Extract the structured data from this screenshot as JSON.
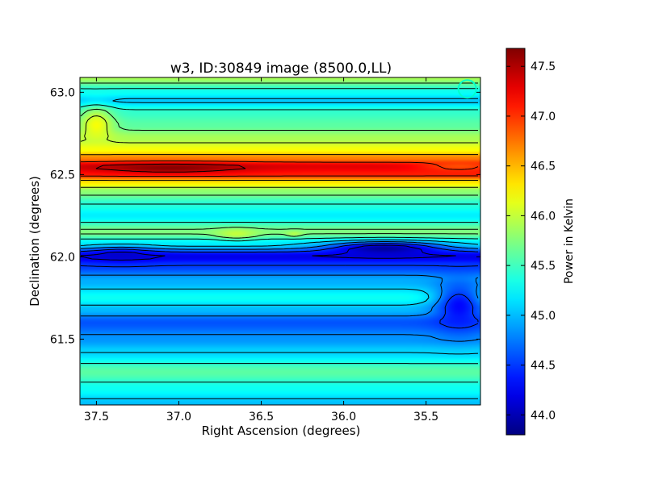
{
  "chart_data": {
    "type": "heatmap",
    "title": "w3, ID:30849 image (8500.0,LL)",
    "xlabel": "Right Ascension (degrees)",
    "ylabel": "Declination (degrees)",
    "xlim": [
      37.6,
      35.17
    ],
    "ylim": [
      61.1,
      63.09
    ],
    "x_ticks": [
      37.5,
      37.0,
      36.5,
      36.0,
      35.5
    ],
    "x_tick_labels": [
      "37.5",
      "37.0",
      "36.5",
      "36.0",
      "35.5"
    ],
    "y_ticks": [
      61.5,
      62.0,
      62.5,
      63.0
    ],
    "y_tick_labels": [
      "61.5",
      "62.0",
      "62.5",
      "63.0"
    ],
    "colorbar": {
      "label": "Power in Kelvin",
      "range": [
        43.8,
        47.68
      ],
      "ticks": [
        44.0,
        44.5,
        45.0,
        45.5,
        46.0,
        46.5,
        47.0,
        47.5
      ],
      "tick_labels": [
        "44.0",
        "44.5",
        "45.0",
        "45.5",
        "46.0",
        "46.5",
        "47.0",
        "47.5"
      ],
      "colormap": "jet"
    },
    "grid": false,
    "contours": true,
    "bands": [
      {
        "dec": 63.09,
        "value": 45.9
      },
      {
        "dec": 63.0,
        "value": 45.3
      },
      {
        "dec": 62.95,
        "value": 45.05
      },
      {
        "dec": 62.88,
        "value": 45.45
      },
      {
        "dec": 62.8,
        "value": 45.6
      },
      {
        "dec": 62.72,
        "value": 45.9
      },
      {
        "dec": 62.65,
        "value": 46.2
      },
      {
        "dec": 62.6,
        "value": 46.7
      },
      {
        "dec": 62.55,
        "value": 47.3
      },
      {
        "dec": 62.5,
        "value": 47.1
      },
      {
        "dec": 62.45,
        "value": 46.3
      },
      {
        "dec": 62.4,
        "value": 45.8
      },
      {
        "dec": 62.32,
        "value": 45.4
      },
      {
        "dec": 62.25,
        "value": 45.2
      },
      {
        "dec": 62.15,
        "value": 45.75
      },
      {
        "dec": 62.08,
        "value": 45.2
      },
      {
        "dec": 62.0,
        "value": 44.2
      },
      {
        "dec": 61.95,
        "value": 44.5
      },
      {
        "dec": 61.85,
        "value": 44.95
      },
      {
        "dec": 61.75,
        "value": 45.3
      },
      {
        "dec": 61.68,
        "value": 45.0
      },
      {
        "dec": 61.6,
        "value": 44.6
      },
      {
        "dec": 61.5,
        "value": 44.85
      },
      {
        "dec": 61.42,
        "value": 45.1
      },
      {
        "dec": 61.3,
        "value": 45.6
      },
      {
        "dec": 61.2,
        "value": 45.3
      },
      {
        "dec": 61.1,
        "value": 45.0
      }
    ],
    "blobs": [
      {
        "ra": 37.05,
        "dec": 62.54,
        "rx": 0.45,
        "ry": 0.03,
        "value": 47.65
      },
      {
        "ra": 35.75,
        "dec": 62.05,
        "rx": 0.35,
        "ry": 0.04,
        "value": 43.9
      },
      {
        "ra": 37.35,
        "dec": 62.01,
        "rx": 0.2,
        "ry": 0.04,
        "value": 44.1
      },
      {
        "ra": 36.65,
        "dec": 62.14,
        "rx": 0.12,
        "ry": 0.03,
        "value": 46.0
      },
      {
        "ra": 36.3,
        "dec": 62.14,
        "rx": 0.05,
        "ry": 0.015,
        "value": 45.95
      },
      {
        "ra": 37.5,
        "dec": 62.8,
        "rx": 0.1,
        "ry": 0.1,
        "value": 46.2
      },
      {
        "ra": 35.3,
        "dec": 62.55,
        "rx": 0.25,
        "ry": 0.03,
        "value": 46.9
      },
      {
        "ra": 35.3,
        "dec": 61.7,
        "rx": 0.15,
        "ry": 0.15,
        "value": 44.3
      }
    ],
    "contour_levels": [
      44.2,
      44.5,
      44.8,
      45.1,
      45.4,
      45.7,
      46.0,
      46.5,
      47.0,
      47.4
    ],
    "marker": {
      "ra": 35.25,
      "dec": 63.02,
      "shape": "circle",
      "color": "#00ffcc"
    }
  }
}
